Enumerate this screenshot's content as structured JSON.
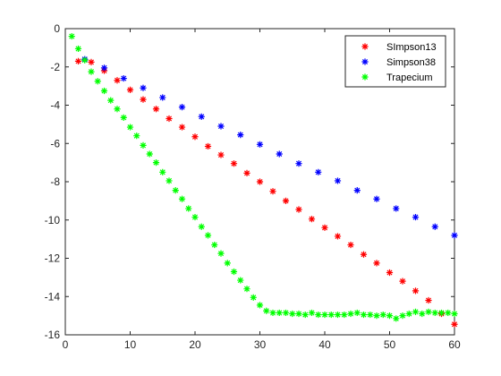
{
  "chart_data": {
    "type": "scatter",
    "title": "",
    "xlabel": "",
    "ylabel": "",
    "xlim": [
      0,
      60
    ],
    "ylim": [
      -16,
      0
    ],
    "xticks": [
      0,
      10,
      20,
      30,
      40,
      50,
      60
    ],
    "yticks": [
      0,
      -2,
      -4,
      -6,
      -8,
      -10,
      -12,
      -14,
      -16
    ],
    "grid": false,
    "legend_position": "top-right",
    "marker": "asterisk",
    "series": [
      {
        "name": "SImpson13",
        "color": "#ff0000",
        "x": [
          2,
          4,
          6,
          8,
          10,
          12,
          14,
          16,
          18,
          20,
          22,
          24,
          26,
          28,
          30,
          32,
          34,
          36,
          38,
          40,
          42,
          44,
          46,
          48,
          50,
          52,
          54,
          56,
          58,
          60
        ],
        "y": [
          -1.7,
          -1.75,
          -2.2,
          -2.7,
          -3.2,
          -3.7,
          -4.2,
          -4.7,
          -5.15,
          -5.65,
          -6.15,
          -6.6,
          -7.05,
          -7.55,
          -8.0,
          -8.5,
          -9.0,
          -9.45,
          -9.95,
          -10.4,
          -10.85,
          -11.3,
          -11.8,
          -12.25,
          -12.75,
          -13.2,
          -13.7,
          -14.2,
          -14.9,
          -15.45
        ]
      },
      {
        "name": "Simpson38",
        "color": "#0000ff",
        "x": [
          3,
          6,
          9,
          12,
          15,
          18,
          21,
          24,
          27,
          30,
          33,
          36,
          39,
          42,
          45,
          48,
          51,
          54,
          57,
          60
        ],
        "y": [
          -1.6,
          -2.05,
          -2.6,
          -3.1,
          -3.6,
          -4.1,
          -4.6,
          -5.1,
          -5.55,
          -6.05,
          -6.55,
          -7.05,
          -7.5,
          -7.95,
          -8.45,
          -8.9,
          -9.4,
          -9.85,
          -10.35,
          -10.8
        ]
      },
      {
        "name": "Trapecium",
        "color": "#00ff00",
        "x": [
          1,
          2,
          3,
          4,
          5,
          6,
          7,
          8,
          9,
          10,
          11,
          12,
          13,
          14,
          15,
          16,
          17,
          18,
          19,
          20,
          21,
          22,
          23,
          24,
          25,
          26,
          27,
          28,
          29,
          30,
          31,
          32,
          33,
          34,
          35,
          36,
          37,
          38,
          39,
          40,
          41,
          42,
          43,
          44,
          45,
          46,
          47,
          48,
          49,
          50,
          51,
          52,
          53,
          54,
          55,
          56,
          57,
          58,
          59,
          60
        ],
        "y": [
          -0.4,
          -1.05,
          -1.65,
          -2.25,
          -2.75,
          -3.25,
          -3.75,
          -4.2,
          -4.65,
          -5.15,
          -5.6,
          -6.1,
          -6.55,
          -7.0,
          -7.5,
          -7.95,
          -8.45,
          -8.9,
          -9.4,
          -9.85,
          -10.35,
          -10.8,
          -11.3,
          -11.75,
          -12.25,
          -12.7,
          -13.15,
          -13.6,
          -14.05,
          -14.45,
          -14.75,
          -14.85,
          -14.85,
          -14.85,
          -14.9,
          -14.9,
          -14.95,
          -14.85,
          -14.95,
          -14.95,
          -14.95,
          -14.95,
          -14.95,
          -14.9,
          -14.85,
          -14.95,
          -14.95,
          -15.0,
          -14.95,
          -15.0,
          -15.15,
          -15.0,
          -14.9,
          -14.8,
          -14.9,
          -14.8,
          -14.85,
          -14.85,
          -14.85,
          -14.9
        ]
      }
    ]
  }
}
